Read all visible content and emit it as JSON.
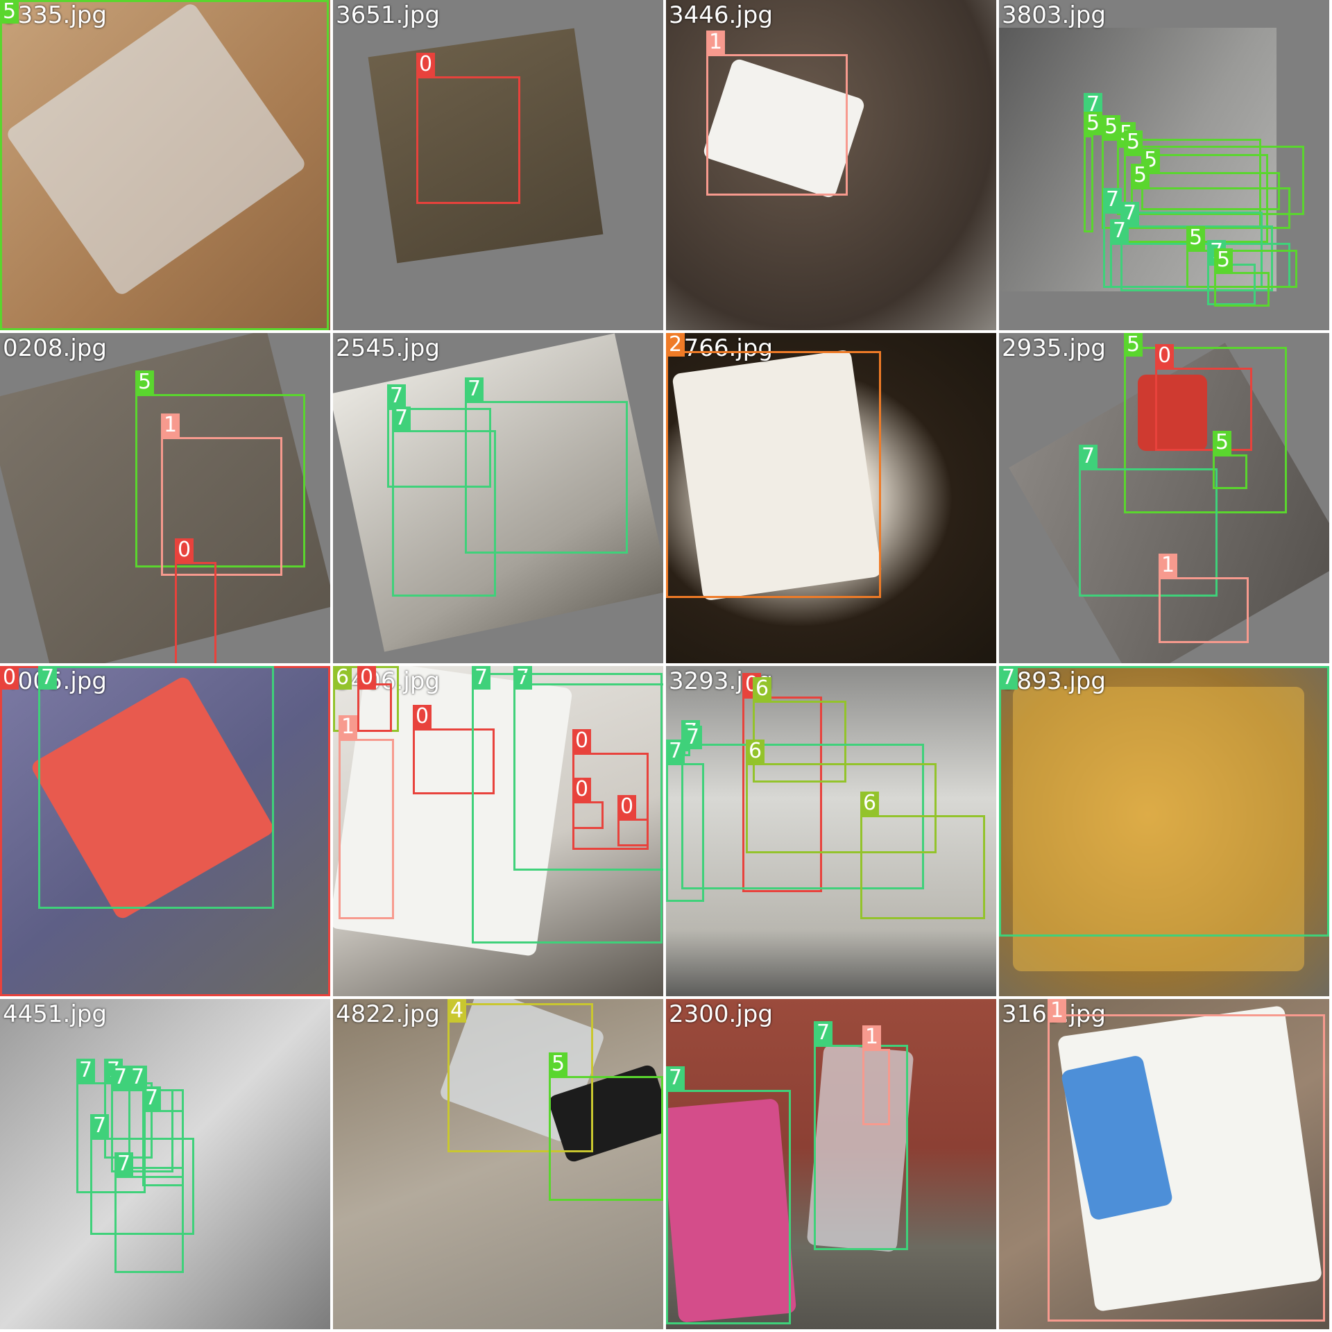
{
  "classes": {
    "0": "#e8423c",
    "1": "#f79a8e",
    "2": "#ef7b27",
    "4": "#c9c72f",
    "5": "#5ad62e",
    "6": "#93c32b",
    "7": "#3fd17a"
  },
  "tiles": [
    {
      "filename": "3335.jpg",
      "boxes": [
        {
          "cls": "5"
        }
      ]
    },
    {
      "filename": "3651.jpg",
      "boxes": [
        {
          "cls": "0"
        }
      ]
    },
    {
      "filename": "3446.jpg",
      "boxes": [
        {
          "cls": "1"
        }
      ]
    },
    {
      "filename": "3803.jpg",
      "boxes": [
        {
          "cls": "7"
        },
        {
          "cls": "5"
        },
        {
          "cls": "5"
        },
        {
          "cls": "5"
        },
        {
          "cls": "5"
        },
        {
          "cls": "5"
        },
        {
          "cls": "5"
        },
        {
          "cls": "7"
        },
        {
          "cls": "7"
        },
        {
          "cls": "7"
        },
        {
          "cls": "5"
        },
        {
          "cls": "7"
        },
        {
          "cls": "5"
        }
      ]
    },
    {
      "filename": "0208.jpg",
      "boxes": [
        {
          "cls": "5"
        },
        {
          "cls": "1"
        },
        {
          "cls": "0"
        }
      ]
    },
    {
      "filename": "2545.jpg",
      "boxes": [
        {
          "cls": "7"
        },
        {
          "cls": "7"
        },
        {
          "cls": "7"
        }
      ]
    },
    {
      "filename": "2766.jpg",
      "boxes": [
        {
          "cls": "2"
        }
      ]
    },
    {
      "filename": "2935.jpg",
      "boxes": [
        {
          "cls": "5"
        },
        {
          "cls": "0"
        },
        {
          "cls": "7"
        },
        {
          "cls": "5"
        },
        {
          "cls": "1"
        }
      ]
    },
    {
      "filename": "4005.jpg",
      "boxes": [
        {
          "cls": "0"
        },
        {
          "cls": "7"
        }
      ]
    },
    {
      "filename": "3406.jpg",
      "boxes": [
        {
          "cls": "6"
        },
        {
          "cls": "0"
        },
        {
          "cls": "0"
        },
        {
          "cls": "7"
        },
        {
          "cls": "7"
        },
        {
          "cls": "0"
        },
        {
          "cls": "0"
        },
        {
          "cls": "0"
        },
        {
          "cls": "1"
        }
      ]
    },
    {
      "filename": "3293.jpg",
      "boxes": [
        {
          "cls": "0"
        },
        {
          "cls": "6"
        },
        {
          "cls": "7"
        },
        {
          "cls": "7"
        },
        {
          "cls": "6"
        },
        {
          "cls": "7"
        },
        {
          "cls": "6"
        }
      ]
    },
    {
      "filename": "3893.jpg",
      "boxes": [
        {
          "cls": "7"
        }
      ]
    },
    {
      "filename": "4451.jpg",
      "boxes": [
        {
          "cls": "7"
        },
        {
          "cls": "7"
        },
        {
          "cls": "7"
        },
        {
          "cls": "7"
        },
        {
          "cls": "7"
        },
        {
          "cls": "7"
        },
        {
          "cls": "7"
        }
      ]
    },
    {
      "filename": "4822.jpg",
      "boxes": [
        {
          "cls": "4"
        },
        {
          "cls": "5"
        }
      ]
    },
    {
      "filename": "2300.jpg",
      "boxes": [
        {
          "cls": "7"
        },
        {
          "cls": "1"
        },
        {
          "cls": "7"
        }
      ]
    },
    {
      "filename": "3163.jpg",
      "boxes": [
        {
          "cls": "1"
        }
      ]
    }
  ]
}
